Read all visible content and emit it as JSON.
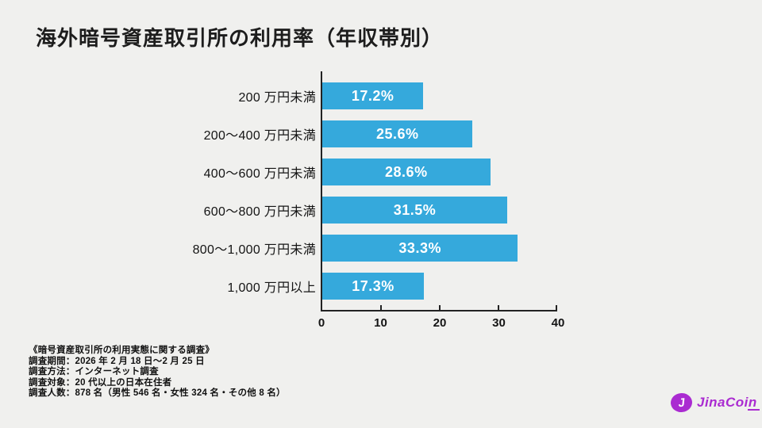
{
  "page": {
    "background": "#f0f0ee"
  },
  "title": "海外暗号資産取引所の利用率（年収帯別）",
  "chart_data": {
    "type": "bar",
    "orientation": "horizontal",
    "title": "海外暗号資産取引所の利用率（年収帯別）",
    "categories": [
      "200 万円未満",
      "200～400 万円未満",
      "400～600 万円未満",
      "600～800 万円未満",
      "800～1,000 万円未満",
      "1,000 万円以上"
    ],
    "values": [
      17.2,
      25.6,
      28.6,
      31.5,
      33.3,
      17.3
    ],
    "value_labels": [
      "17.2%",
      "25.6%",
      "28.6%",
      "31.5%",
      "33.3%",
      "17.3%"
    ],
    "xlabel": "",
    "ylabel": "",
    "xlim": [
      0,
      40
    ],
    "x_ticks": [
      "0",
      "10",
      "20",
      "30",
      "40"
    ],
    "grid": false,
    "legend": false,
    "bar_color": "#35a9dc",
    "value_label_color": "#ffffff",
    "axis_color": "#222222"
  },
  "footnote": {
    "heading": "《暗号資産取引所の利用実態に関する調査》",
    "lines": [
      "調査期間：2026 年 2 月 18 日～2 月 25 日",
      "調査方法：インターネット調査",
      "調査対象：20 代以上の日本在住者",
      "調査人数：878 名（男性 546 名・女性 324 名・その他 8 名）"
    ]
  },
  "logo": {
    "text": "JinaCoin",
    "icon_letter": "J",
    "color": "#aa2bd1"
  }
}
